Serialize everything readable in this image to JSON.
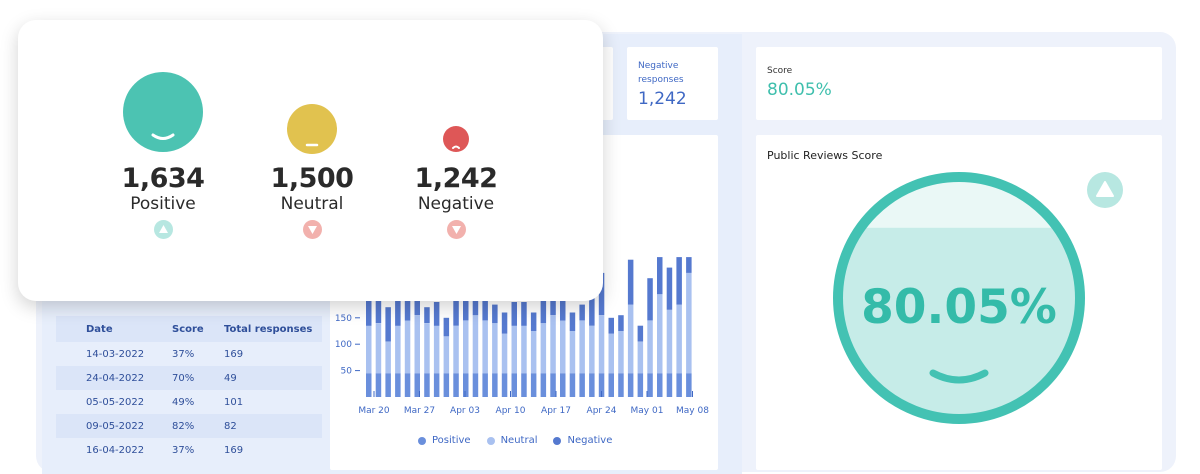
{
  "kpis": {
    "negative_label": "Negative responses",
    "negative_value": "1,242"
  },
  "score_card": {
    "label": "Score",
    "value": "80.05%"
  },
  "public_reviews": {
    "title": "Public Reviews Score",
    "value": "80.05%",
    "fill_fraction": 0.8,
    "trend": "up",
    "colors": {
      "ring": "#43c2b3",
      "fill": "#c6ece8",
      "text": "#34bba9"
    }
  },
  "table": {
    "headers": [
      "Date",
      "Score",
      "Total responses"
    ],
    "rows": [
      [
        "14-03-2022",
        "37%",
        "169"
      ],
      [
        "24-04-2022",
        "70%",
        "49"
      ],
      [
        "05-05-2022",
        "49%",
        "101"
      ],
      [
        "09-05-2022",
        "82%",
        "82"
      ],
      [
        "16-04-2022",
        "37%",
        "169"
      ]
    ]
  },
  "chart_data": {
    "type": "bar",
    "stacked": true,
    "x_tick_labels": [
      "Mar 20",
      "Mar 27",
      "Apr 03",
      "Apr 10",
      "Apr 17",
      "Apr 24",
      "May 01",
      "May 08"
    ],
    "y_tick_labels": [
      "50",
      "100",
      "150"
    ],
    "ylim": [
      0,
      320
    ],
    "series": [
      {
        "name": "Positive",
        "color": "#6a8fdc",
        "values": [
          45,
          45,
          45,
          45,
          45,
          45,
          45,
          45,
          45,
          45,
          45,
          45,
          45,
          45,
          45,
          45,
          45,
          45,
          45,
          45,
          45,
          45,
          45,
          45,
          45,
          45,
          45,
          45,
          45,
          45,
          45,
          45,
          45,
          45
        ]
      },
      {
        "name": "Neutral",
        "color": "#a9c1f0",
        "values": [
          90,
          95,
          60,
          90,
          100,
          110,
          95,
          90,
          70,
          90,
          100,
          110,
          100,
          95,
          75,
          90,
          90,
          80,
          95,
          110,
          100,
          80,
          100,
          90,
          110,
          75,
          80,
          130,
          60,
          100,
          150,
          120,
          130,
          190
        ]
      },
      {
        "name": "Negative",
        "color": "#5579cf",
        "values": [
          70,
          55,
          65,
          70,
          45,
          55,
          30,
          45,
          35,
          65,
          40,
          70,
          55,
          35,
          40,
          45,
          45,
          35,
          50,
          55,
          45,
          35,
          30,
          55,
          80,
          30,
          30,
          85,
          30,
          80,
          70,
          80,
          90,
          30
        ]
      }
    ],
    "legend_position": "bottom"
  },
  "popup": {
    "positive": {
      "value": "1,634",
      "label": "Positive",
      "color": "#4cc3b2",
      "trend": "up"
    },
    "neutral": {
      "value": "1,500",
      "label": "Neutral",
      "color": "#e1c24f",
      "trend": "down"
    },
    "negative": {
      "value": "1,242",
      "label": "Negative",
      "color": "#de5757",
      "trend": "down"
    }
  }
}
